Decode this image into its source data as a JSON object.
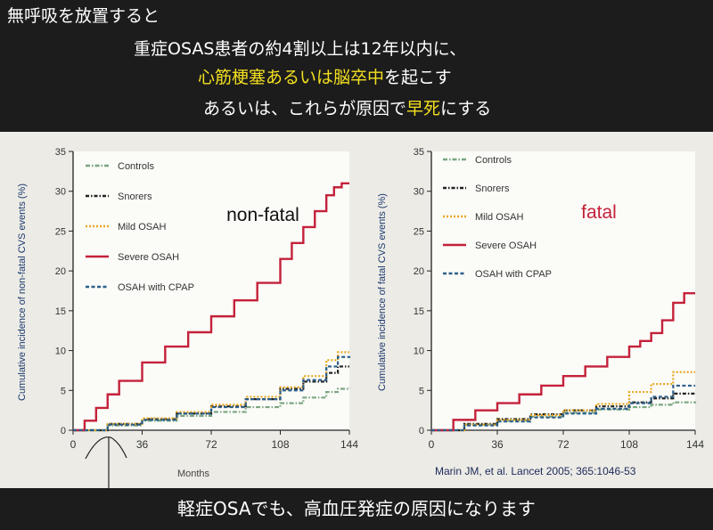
{
  "banner": {
    "line1": "無呼吸を放置すると",
    "line2": "重症OSAS患者の約4割以上は12年以内に、",
    "line3_highlight": "心筋梗塞あるいは脳卒中",
    "line3_rest": "を起こす",
    "line4_a": "あるいは、これらが原因で",
    "line4_highlight": "早死",
    "line4_b": "にする",
    "highlight_color": "#f4e020"
  },
  "footer": {
    "text": "軽症OSAでも、高血圧発症の原因になります"
  },
  "citation": "Marin JM, et al. Lancet 2005;  365:1046-53",
  "colors": {
    "Controls": "#7aa680",
    "Snorers": "#222222",
    "Mild OSAH": "#e8a81f",
    "Severe OSAH": "#c4213a",
    "OSAH with CPAP": "#2c5f8a"
  },
  "chart_data": [
    {
      "type": "line",
      "title": "non-fatal",
      "title_color": "#111111",
      "xlabel": "Months",
      "ylabel": "Cumulative incidence of non-fatal CVS events (%)",
      "xlim": [
        0,
        144
      ],
      "ylim": [
        0,
        35
      ],
      "xticks": [
        0,
        36,
        72,
        108,
        144
      ],
      "yticks": [
        0,
        5,
        10,
        15,
        20,
        25,
        30,
        35
      ],
      "legend": "top-left",
      "series": [
        {
          "name": "Controls",
          "style": "dotdash",
          "x": [
            0,
            18,
            36,
            54,
            72,
            90,
            108,
            120,
            132,
            138,
            144
          ],
          "y": [
            0,
            0.6,
            1.2,
            1.8,
            2.3,
            2.9,
            3.4,
            4.1,
            4.8,
            5.2,
            5.3
          ]
        },
        {
          "name": "Snorers",
          "style": "dashdot",
          "x": [
            0,
            18,
            36,
            54,
            72,
            90,
            108,
            120,
            132,
            138,
            144
          ],
          "y": [
            0,
            0.8,
            1.4,
            2.1,
            3.0,
            3.9,
            5.2,
            6.1,
            7.2,
            8.0,
            8.0
          ]
        },
        {
          "name": "Mild OSAH",
          "style": "dotted",
          "x": [
            0,
            18,
            36,
            54,
            72,
            90,
            108,
            120,
            132,
            138,
            144
          ],
          "y": [
            0,
            0.8,
            1.5,
            2.3,
            3.2,
            4.2,
            5.4,
            6.8,
            8.8,
            9.8,
            9.8
          ]
        },
        {
          "name": "Severe OSAH",
          "style": "solid",
          "x": [
            0,
            6,
            12,
            18,
            24,
            36,
            48,
            60,
            72,
            84,
            96,
            108,
            114,
            120,
            126,
            132,
            136,
            140,
            144
          ],
          "y": [
            0,
            1.2,
            2.8,
            4.5,
            6.2,
            8.5,
            10.5,
            12.3,
            14.3,
            16.3,
            18.5,
            21.5,
            23.5,
            25.5,
            27.5,
            29.5,
            30.5,
            31,
            31
          ]
        },
        {
          "name": "OSAH with CPAP",
          "style": "dashed",
          "x": [
            0,
            18,
            36,
            54,
            72,
            90,
            108,
            120,
            132,
            138,
            144
          ],
          "y": [
            0,
            0.7,
            1.3,
            2.1,
            2.9,
            3.9,
            5.0,
            6.3,
            8.0,
            9.2,
            9.3
          ]
        }
      ]
    },
    {
      "type": "line",
      "title": "fatal",
      "title_color": "#c4213a",
      "xlabel": "",
      "ylabel": "Cumulative incidence of fatal CVS events (%)",
      "xlim": [
        0,
        144
      ],
      "ylim": [
        0,
        35
      ],
      "xticks": [
        0,
        36,
        72,
        108,
        144
      ],
      "yticks": [
        0,
        5,
        10,
        15,
        20,
        25,
        30,
        35
      ],
      "legend": "top-left",
      "series": [
        {
          "name": "Controls",
          "style": "dotdash",
          "x": [
            0,
            18,
            36,
            54,
            72,
            90,
            108,
            120,
            132,
            144
          ],
          "y": [
            0,
            0.7,
            1.2,
            1.7,
            2.2,
            2.6,
            2.9,
            3.2,
            3.5,
            3.6
          ]
        },
        {
          "name": "Snorers",
          "style": "dashdot",
          "x": [
            0,
            18,
            36,
            54,
            72,
            90,
            108,
            120,
            132,
            144
          ],
          "y": [
            0,
            0.8,
            1.4,
            2.0,
            2.5,
            3.0,
            3.5,
            4.0,
            4.6,
            4.6
          ]
        },
        {
          "name": "Mild OSAH",
          "style": "dotted",
          "x": [
            0,
            18,
            36,
            54,
            72,
            90,
            108,
            120,
            132,
            144
          ],
          "y": [
            0,
            0.7,
            1.3,
            1.9,
            2.5,
            3.3,
            4.8,
            5.8,
            7.3,
            7.3
          ]
        },
        {
          "name": "Severe OSAH",
          "style": "solid",
          "x": [
            0,
            12,
            24,
            36,
            48,
            60,
            72,
            84,
            96,
            108,
            114,
            120,
            126,
            132,
            138,
            144
          ],
          "y": [
            0,
            1.3,
            2.5,
            3.4,
            4.5,
            5.6,
            6.8,
            8.0,
            9.2,
            10.5,
            11.2,
            12.2,
            13.8,
            16.0,
            17.2,
            17.2
          ]
        },
        {
          "name": "OSAH with CPAP",
          "style": "dashed",
          "x": [
            0,
            18,
            36,
            54,
            72,
            90,
            108,
            120,
            132,
            144
          ],
          "y": [
            0,
            0.6,
            1.1,
            1.6,
            2.1,
            2.7,
            3.4,
            4.2,
            5.6,
            5.6
          ]
        }
      ]
    }
  ]
}
